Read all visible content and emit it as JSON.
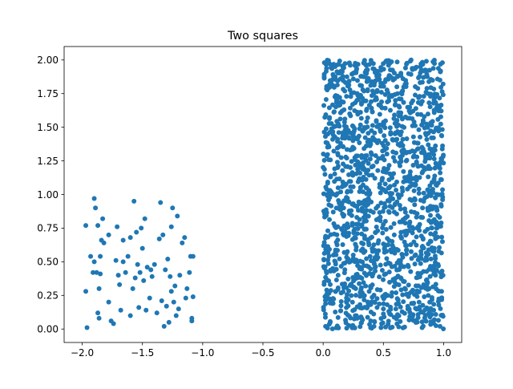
{
  "chart_data": {
    "type": "scatter",
    "title": "Two squares",
    "xlabel": "",
    "ylabel": "",
    "xlim": [
      -2.15,
      1.15
    ],
    "ylim": [
      -0.1,
      2.1
    ],
    "xticks": [
      -2.0,
      -1.5,
      -1.0,
      -0.5,
      0.0,
      0.5,
      1.0
    ],
    "yticks": [
      0.0,
      0.25,
      0.5,
      0.75,
      1.0,
      1.25,
      1.5,
      1.75,
      2.0
    ],
    "xtick_labels": [
      "−2.0",
      "−1.5",
      "−1.0",
      "−0.5",
      "0.0",
      "0.5",
      "1.0"
    ],
    "ytick_labels": [
      "0.00",
      "0.25",
      "0.50",
      "0.75",
      "1.00",
      "1.25",
      "1.50",
      "1.75",
      "2.00"
    ],
    "grid": false,
    "marker_color": "#1f77b4",
    "series": [
      {
        "values": [
          [
            -1.96,
            0.01
          ],
          [
            -1.97,
            0.28
          ],
          [
            -1.97,
            0.77
          ],
          [
            -1.93,
            0.54
          ],
          [
            -1.9,
            0.97
          ],
          [
            -1.89,
            0.9
          ],
          [
            -1.88,
            0.42
          ],
          [
            -1.87,
            0.12
          ],
          [
            -1.87,
            0.77
          ],
          [
            -1.86,
            0.08
          ],
          [
            -1.85,
            0.54
          ],
          [
            -1.85,
            0.41
          ],
          [
            -1.84,
            0.66
          ],
          [
            -1.82,
            0.64
          ],
          [
            -1.83,
            0.82
          ],
          [
            -1.9,
            0.5
          ],
          [
            -1.91,
            0.42
          ],
          [
            -1.86,
            0.3
          ],
          [
            -1.78,
            0.2
          ],
          [
            -1.76,
            0.06
          ],
          [
            -1.74,
            0.04
          ],
          [
            -1.72,
            0.51
          ],
          [
            -1.71,
            0.76
          ],
          [
            -1.7,
            0.4
          ],
          [
            -1.69,
            0.33
          ],
          [
            -1.68,
            0.14
          ],
          [
            -1.66,
            0.66
          ],
          [
            -1.64,
            0.42
          ],
          [
            -1.62,
            0.54
          ],
          [
            -1.6,
            0.68
          ],
          [
            -1.6,
            0.1
          ],
          [
            -1.58,
            0.3
          ],
          [
            -1.57,
            0.95
          ],
          [
            -1.55,
            0.72
          ],
          [
            -1.54,
            0.48
          ],
          [
            -1.53,
            0.16
          ],
          [
            -1.52,
            0.42
          ],
          [
            -1.51,
            0.75
          ],
          [
            -1.5,
            0.6
          ],
          [
            -1.49,
            0.36
          ],
          [
            -1.48,
            0.82
          ],
          [
            -1.47,
            0.14
          ],
          [
            -1.46,
            0.46
          ],
          [
            -1.44,
            0.23
          ],
          [
            -1.42,
            0.39
          ],
          [
            -1.4,
            0.48
          ],
          [
            -1.38,
            0.12
          ],
          [
            -1.36,
            0.67
          ],
          [
            -1.35,
            0.94
          ],
          [
            -1.34,
            0.21
          ],
          [
            -1.33,
            0.7
          ],
          [
            -1.32,
            0.02
          ],
          [
            -1.31,
            0.44
          ],
          [
            -1.3,
            0.17
          ],
          [
            -1.29,
            0.52
          ],
          [
            -1.28,
            0.05
          ],
          [
            -1.27,
            0.39
          ],
          [
            -1.26,
            0.28
          ],
          [
            -1.25,
            0.9
          ],
          [
            -1.24,
            0.2
          ],
          [
            -1.23,
            0.32
          ],
          [
            -1.22,
            0.1
          ],
          [
            -1.21,
            0.84
          ],
          [
            -1.2,
            0.15
          ],
          [
            -1.19,
            0.4
          ],
          [
            -1.17,
            0.64
          ],
          [
            -1.15,
            0.68
          ],
          [
            -1.14,
            0.23
          ],
          [
            -1.13,
            0.3
          ],
          [
            -1.11,
            0.42
          ],
          [
            -1.1,
            0.54
          ],
          [
            -1.09,
            0.06
          ],
          [
            -1.08,
            0.54
          ],
          [
            -1.08,
            0.24
          ],
          [
            -1.09,
            0.08
          ],
          [
            -1.26,
            0.76
          ],
          [
            -1.43,
            0.44
          ],
          [
            -1.56,
            0.38
          ],
          [
            -1.66,
            0.5
          ],
          [
            -1.78,
            0.7
          ],
          [
            0.02,
            0.02
          ],
          [
            0.05,
            1.8
          ],
          [
            0.08,
            0.45
          ],
          [
            0.12,
            1.2
          ],
          [
            0.17,
            0.9
          ],
          [
            0.22,
            1.6
          ],
          [
            0.27,
            0.3
          ],
          [
            0.31,
            1.05
          ],
          [
            0.36,
            1.9
          ],
          [
            0.41,
            0.6
          ],
          [
            0.46,
            1.4
          ],
          [
            0.5,
            0.15
          ],
          [
            0.55,
            0.95
          ],
          [
            0.6,
            1.7
          ],
          [
            0.64,
            0.5
          ],
          [
            0.69,
            1.25
          ],
          [
            0.73,
            2.0
          ],
          [
            0.78,
            0.75
          ],
          [
            0.83,
            1.55
          ],
          [
            0.88,
            0.3
          ],
          [
            0.92,
            1.1
          ],
          [
            0.97,
            1.85
          ],
          [
            0.99,
            0.65
          ],
          [
            0.03,
            1.0
          ],
          [
            0.97,
            0.02
          ],
          [
            0.01,
            1.98
          ],
          [
            0.99,
            1.98
          ],
          [
            0.48,
            0.01
          ],
          [
            0.52,
            1.99
          ],
          [
            0.25,
            0.55
          ]
        ]
      }
    ],
    "dense_block": {
      "x_range": [
        0.0,
        1.0
      ],
      "y_range": [
        0.0,
        2.0
      ],
      "count": 1600,
      "note": "uniform random fill"
    }
  }
}
